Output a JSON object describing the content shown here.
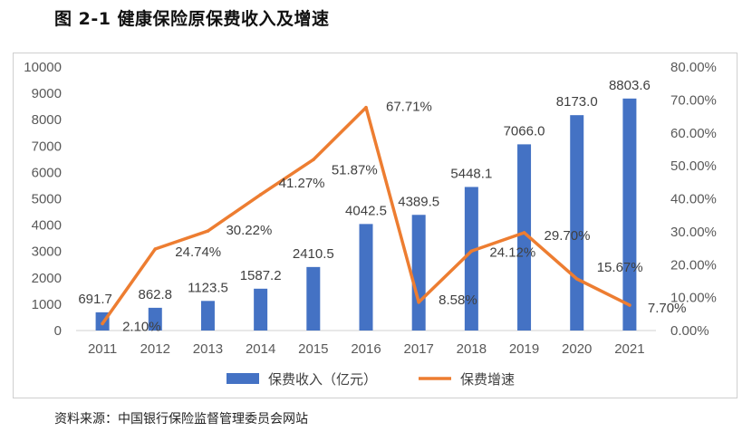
{
  "title": "图 2-1  健康保险原保费收入及增速",
  "source": "资料来源：中国银行保险监督管理委员会网站",
  "colors": {
    "bar": "#4472C4",
    "line": "#ED7D31",
    "axis_text": "#595959",
    "grid": "#d9d9d9"
  },
  "chart_data": {
    "type": "bar",
    "title": "",
    "categories": [
      "2011",
      "2012",
      "2013",
      "2014",
      "2015",
      "2016",
      "2017",
      "2018",
      "2019",
      "2020",
      "2021"
    ],
    "series": [
      {
        "name": "保费收入（亿元）",
        "type": "bar",
        "axis": "left",
        "values": [
          691.7,
          862.8,
          1123.5,
          1587.2,
          2410.5,
          4042.5,
          4389.5,
          5448.1,
          7066.0,
          8173.0,
          8803.6
        ],
        "labels": [
          "691.7",
          "862.8",
          "1123.5",
          "1587.2",
          "2410.5",
          "4042.5",
          "4389.5",
          "5448.1",
          "7066.0",
          "8173.0",
          "8803.6"
        ]
      },
      {
        "name": "保费增速",
        "type": "line",
        "axis": "right",
        "values": [
          2.1,
          24.74,
          30.22,
          41.27,
          51.87,
          67.71,
          8.58,
          24.12,
          29.7,
          15.67,
          7.7
        ],
        "labels": [
          "2.10%",
          "24.74%",
          "30.22%",
          "41.27%",
          "51.87%",
          "67.71%",
          "8.58%",
          "24.12%",
          "29.70%",
          "15.67%",
          "7.70%"
        ]
      }
    ],
    "y_left": {
      "min": 0,
      "max": 10000,
      "ticks": [
        "0",
        "1000",
        "2000",
        "3000",
        "4000",
        "5000",
        "6000",
        "7000",
        "8000",
        "9000",
        "10000"
      ]
    },
    "y_right": {
      "min": 0,
      "max": 80,
      "ticks": [
        "0.00%",
        "10.00%",
        "20.00%",
        "30.00%",
        "40.00%",
        "50.00%",
        "60.00%",
        "70.00%",
        "80.00%"
      ]
    },
    "legend": {
      "position": "bottom"
    },
    "grid": false
  }
}
